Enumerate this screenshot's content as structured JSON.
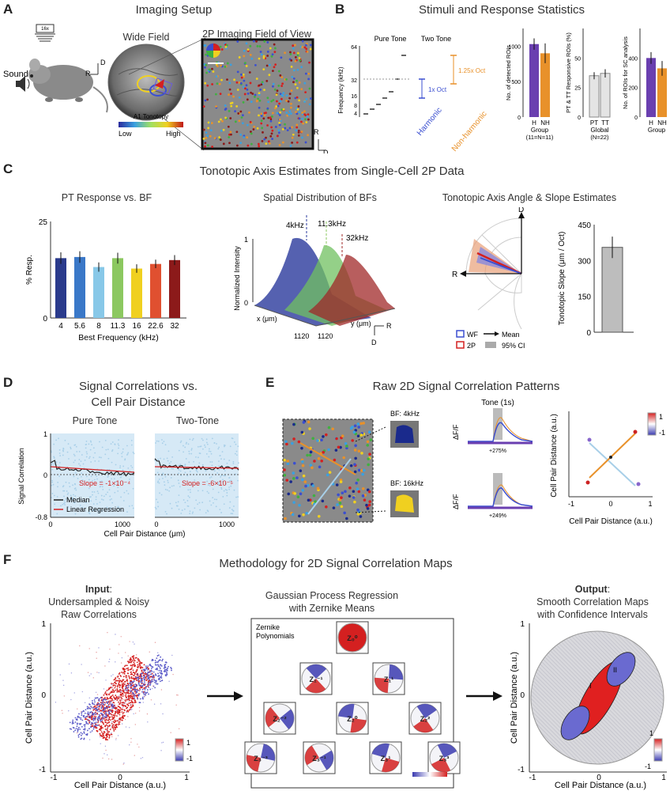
{
  "panels": {
    "A": {
      "label": "A",
      "title": "Imaging Setup",
      "objective": "16x",
      "sound": "Sound",
      "wide_field": "Wide Field",
      "fov_title": "2P Imaging Field of View",
      "tonotopy_label": "A1 Tonotopy",
      "low": "Low",
      "high": "High",
      "axis_r": "R",
      "axis_d": "D"
    },
    "B": {
      "label": "B",
      "title": "Stimuli and Response Statistics",
      "pure_tone": "Pure Tone",
      "two_tone": "Two Tone",
      "freq_axis": "Frequency (kHz)",
      "freq_ticks": [
        "64",
        "32",
        "16",
        "8",
        "4"
      ],
      "one_oct": "1x Oct",
      "one25_oct": "1.25x Oct",
      "harmonic": "Harmonic",
      "nonharmonic": "Non-harmonic",
      "bar1": {
        "ylabel": "No. of detected ROIs",
        "ticks": [
          "1000",
          "500",
          "0"
        ],
        "cats": [
          "H",
          "NH"
        ],
        "xlabel": "Group",
        "n": "(11=N=11)"
      },
      "bar2": {
        "ylabel": "PT & TT Responsive ROIs (%)",
        "ticks": [
          "50",
          "25",
          "0"
        ],
        "cats": [
          "PT",
          "TT"
        ],
        "xlabel": "Global",
        "n": "(N=22)"
      },
      "bar3": {
        "ylabel": "No. of ROIs for SC analysis",
        "ticks": [
          "400",
          "200",
          "0"
        ],
        "cats": [
          "H",
          "NH"
        ],
        "xlabel": "Group"
      }
    },
    "C": {
      "label": "C",
      "title": "Tonotopic Axis Estimates from Single-Cell 2P Data",
      "pt_title": "PT Response vs. BF",
      "pt_ylabel": "% Resp.",
      "pt_xlabel": "Best Frequency (kHz)",
      "pt_yticks": [
        "25",
        "0"
      ],
      "spatial_title": "Spatial Distribution of BFs",
      "spatial_ylabel": "Normalized Intensity",
      "peaks": [
        "4kHz",
        "11.3kHz",
        "32kHz"
      ],
      "x_um": "x (μm)",
      "y_um": "y (μm)",
      "tick_1120": "1120",
      "tick_0": "0",
      "tick_1": "1",
      "angle_title": "Tonotopic Axis Angle & Slope Estimates",
      "legend_wf": "WF",
      "legend_2p": "2P",
      "legend_mean": "Mean",
      "legend_ci": "95% CI",
      "slope_ylabel": "Tonotopic Slope (μm / Oct)",
      "slope_ticks": [
        "450",
        "300",
        "150",
        "0"
      ]
    },
    "D": {
      "label": "D",
      "title1": "Signal Correlations vs.",
      "title2": "Cell Pair Distance",
      "pure_tone": "Pure Tone",
      "two_tone": "Two-Tone",
      "ylabel": "Signal Correlation",
      "xlabel": "Cell Pair Distance (μm)",
      "yticks": [
        "1",
        "0",
        "-0.8"
      ],
      "xticks": [
        "0",
        "1000"
      ],
      "slope1": "Slope = -1×10⁻⁴",
      "slope2": "Slope = -6×10⁻⁵",
      "legend_median": "Median",
      "legend_lr": "Linear Regression"
    },
    "E": {
      "label": "E",
      "title": "Raw 2D Signal Correlation Patterns",
      "bf4": "BF: 4kHz",
      "bf16": "BF: 16kHz",
      "tone": "Tone (1s)",
      "dff": "ΔF/F",
      "pct1": "+275%",
      "pct2": "+249%",
      "xlabel": "Cell Pair Distance (a.u.)",
      "ylabel": "Cell Pair Distance (a.u.)",
      "ticks": [
        "-1",
        "0",
        "1"
      ],
      "cb_hi": "1",
      "cb_lo": "-1"
    },
    "F": {
      "label": "F",
      "title": "Methodology for 2D Signal Correlation Maps",
      "input_bold": "Input",
      "input_rest": ":",
      "input_line2": "Undersampled & Noisy",
      "input_line3": "Raw Correlations",
      "gp_line1": "Gaussian Process Regression",
      "gp_line2": "with Zernike Means",
      "zernike_label": "Zernike Polynomials",
      "output_bold": "Output",
      "output_rest": ":",
      "output_line2": "Smooth Correlation Maps",
      "output_line3": "with Confidence Intervals",
      "xlabel": "Cell Pair Distance (a.u.)",
      "ylabel": "Cell Pair Distance (a.u.)",
      "ticks": [
        "-1",
        "0",
        "1"
      ],
      "cb_hi": "1",
      "cb_lo": "-1",
      "zlabels": [
        "Z₀⁰",
        "Z₁⁻¹",
        "Z₁¹",
        "Z₂⁻²",
        "Z₂⁰",
        "Z₂²",
        "Z₃⁻³",
        "Z₃⁻¹",
        "Z₃¹",
        "Z₃³"
      ],
      "map_labels": [
        "I",
        "II"
      ]
    }
  },
  "chart_data": [
    {
      "type": "bar",
      "title": "PT Response vs. BF",
      "categories": [
        "4",
        "5.6",
        "8",
        "11.3",
        "16",
        "22.6",
        "32"
      ],
      "values": [
        15.5,
        15.8,
        13.2,
        15.5,
        12.8,
        14.0,
        15.0
      ],
      "errors": [
        1.5,
        1.5,
        1.2,
        1.4,
        1.1,
        1.1,
        1.3
      ],
      "colors": [
        "#2a3a8c",
        "#3a78c8",
        "#88c8e8",
        "#8cc860",
        "#f0d020",
        "#e05030",
        "#8c1a1a"
      ],
      "xlabel": "Best Frequency (kHz)",
      "ylabel": "% Resp.",
      "ylim": [
        0,
        25
      ]
    },
    {
      "type": "bar",
      "title": "No. of detected ROIs",
      "categories": [
        "H",
        "NH"
      ],
      "values": [
        1030,
        900
      ],
      "errors": [
        80,
        140
      ],
      "ylim": [
        0,
        1250
      ]
    },
    {
      "type": "bar",
      "title": "PT & TT Responsive ROIs (%)",
      "categories": [
        "PT",
        "TT"
      ],
      "values": [
        35,
        37
      ],
      "errors": [
        3,
        3.5
      ],
      "ylim": [
        0,
        75
      ]
    },
    {
      "type": "bar",
      "title": "No. of ROIs for SC analysis",
      "categories": [
        "H",
        "NH"
      ],
      "values": [
        400,
        330
      ],
      "errors": [
        40,
        50
      ],
      "ylim": [
        0,
        600
      ]
    },
    {
      "type": "bar",
      "title": "Tonotopic Slope",
      "categories": [
        ""
      ],
      "values": [
        355
      ],
      "errors": [
        45
      ],
      "ylim": [
        0,
        450
      ]
    }
  ],
  "colors": {
    "purple": "#6a3fb0",
    "orange": "#e8912a",
    "blue": "#3b4fd0",
    "red": "#d42020",
    "lightblue": "#a8cfe8"
  }
}
